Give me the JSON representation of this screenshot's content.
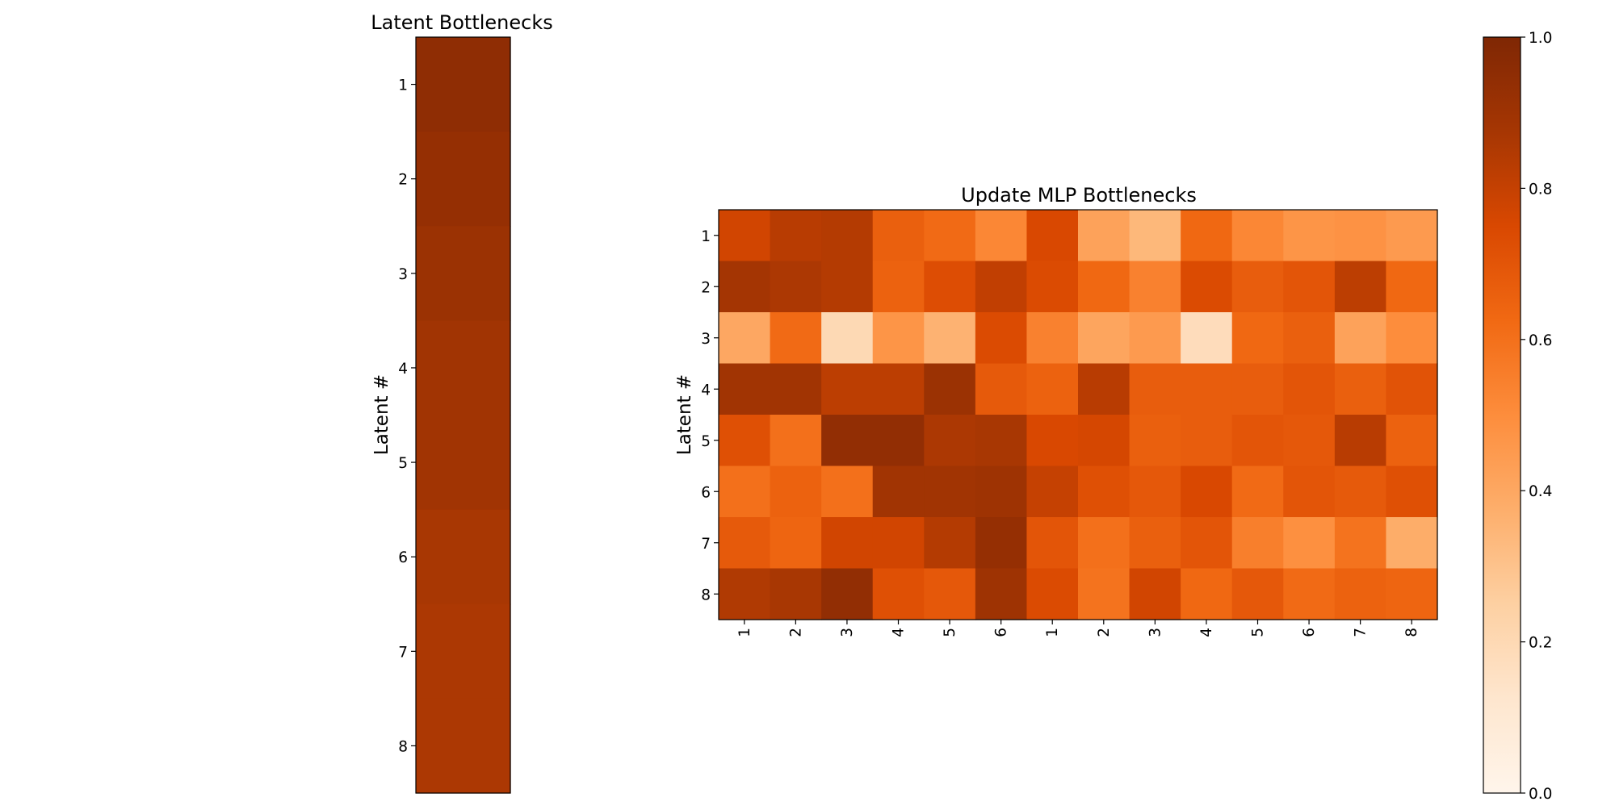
{
  "colormap": {
    "name": "Oranges",
    "stops": [
      "#fff5eb",
      "#fee6ce",
      "#fdd0a2",
      "#fdae6b",
      "#fd8d3c",
      "#f16913",
      "#d94801",
      "#a63603",
      "#7f2704"
    ]
  },
  "chart_data": [
    {
      "type": "heatmap",
      "title": "Latent Bottlenecks",
      "ylabel": "Latent #",
      "xlabel": "",
      "row_labels": [
        "1",
        "2",
        "3",
        "4",
        "5",
        "6",
        "7",
        "8"
      ],
      "column_labels": [],
      "values": [
        [
          0.95
        ],
        [
          0.93
        ],
        [
          0.91
        ],
        [
          0.89
        ],
        [
          0.89
        ],
        [
          0.87
        ],
        [
          0.86
        ],
        [
          0.86
        ]
      ],
      "vlim": [
        0,
        1
      ]
    },
    {
      "type": "heatmap",
      "title": "Update MLP Bottlenecks",
      "ylabel": "Latent #",
      "xlabel": "",
      "row_labels": [
        "1",
        "2",
        "3",
        "4",
        "5",
        "6",
        "7",
        "8"
      ],
      "column_labels": [
        "1",
        "2",
        "3",
        "4",
        "5",
        "6",
        "1",
        "2",
        "3",
        "4",
        "5",
        "6",
        "7",
        "8"
      ],
      "values": [
        [
          0.77,
          0.83,
          0.84,
          0.66,
          0.62,
          0.52,
          0.75,
          0.42,
          0.34,
          0.63,
          0.52,
          0.47,
          0.48,
          0.45
        ],
        [
          0.88,
          0.86,
          0.84,
          0.65,
          0.73,
          0.81,
          0.74,
          0.63,
          0.54,
          0.74,
          0.67,
          0.7,
          0.82,
          0.63
        ],
        [
          0.4,
          0.62,
          0.2,
          0.47,
          0.36,
          0.74,
          0.54,
          0.41,
          0.45,
          0.18,
          0.63,
          0.66,
          0.42,
          0.5
        ],
        [
          0.89,
          0.89,
          0.82,
          0.82,
          0.91,
          0.68,
          0.65,
          0.83,
          0.67,
          0.67,
          0.67,
          0.7,
          0.66,
          0.71
        ],
        [
          0.72,
          0.6,
          0.94,
          0.94,
          0.86,
          0.87,
          0.75,
          0.76,
          0.66,
          0.67,
          0.7,
          0.69,
          0.83,
          0.65
        ],
        [
          0.6,
          0.65,
          0.6,
          0.89,
          0.89,
          0.9,
          0.8,
          0.72,
          0.69,
          0.75,
          0.62,
          0.7,
          0.68,
          0.72
        ],
        [
          0.68,
          0.64,
          0.77,
          0.77,
          0.84,
          0.93,
          0.7,
          0.6,
          0.66,
          0.7,
          0.55,
          0.49,
          0.59,
          0.38
        ],
        [
          0.85,
          0.87,
          0.94,
          0.72,
          0.69,
          0.9,
          0.74,
          0.59,
          0.77,
          0.63,
          0.69,
          0.62,
          0.65,
          0.64
        ]
      ],
      "vlim": [
        0,
        1
      ]
    }
  ],
  "colorbar": {
    "ticks": [
      "0.0",
      "0.2",
      "0.4",
      "0.6",
      "0.8",
      "1.0"
    ],
    "range": [
      0,
      1
    ]
  }
}
